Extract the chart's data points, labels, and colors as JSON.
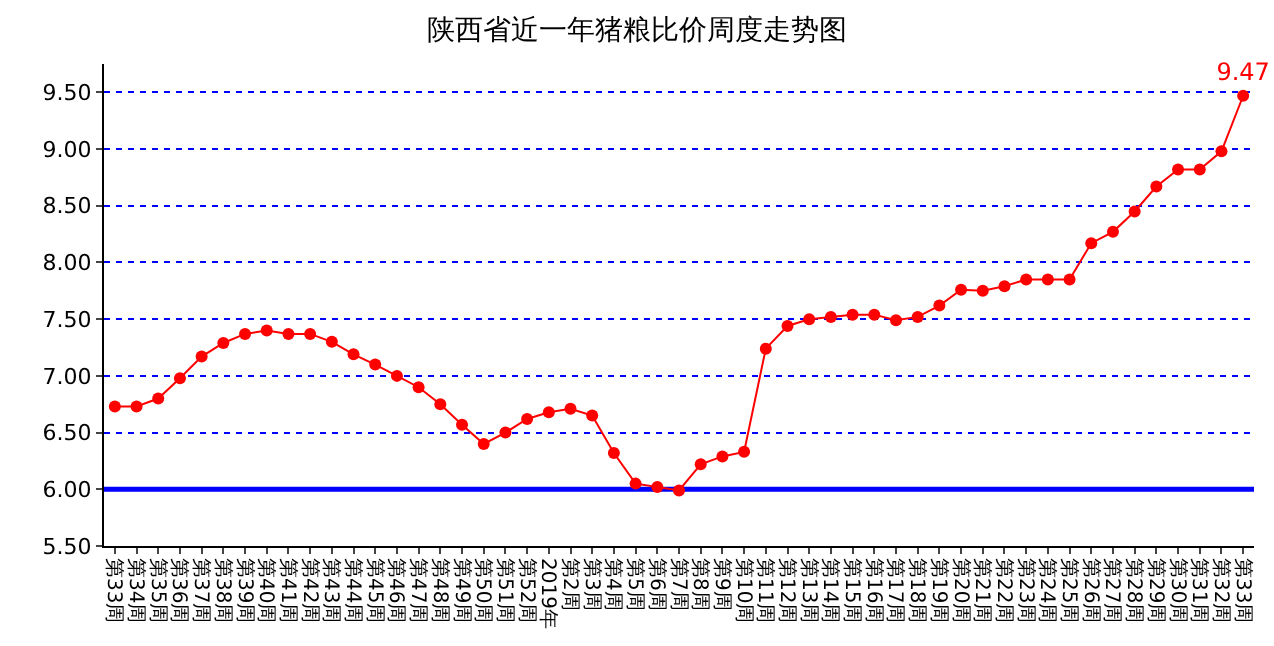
{
  "chart_data": {
    "type": "line",
    "title": "陕西省近一年猪粮比价周度走势图",
    "categories": [
      "第33周",
      "第34周",
      "第35周",
      "第36周",
      "第37周",
      "第38周",
      "第39周",
      "第40周",
      "第41周",
      "第42周",
      "第43周",
      "第44周",
      "第45周",
      "第46周",
      "第47周",
      "第48周",
      "第49周",
      "第50周",
      "第51周",
      "第52周",
      "2019年",
      "第2周",
      "第3周",
      "第4周",
      "第5周",
      "第6周",
      "第7周",
      "第8周",
      "第9周",
      "第10周",
      "第11周",
      "第12周",
      "第13周",
      "第14周",
      "第15周",
      "第16周",
      "第17周",
      "第18周",
      "第19周",
      "第20周",
      "第21周",
      "第22周",
      "第23周",
      "第24周",
      "第25周",
      "第26周",
      "第27周",
      "第28周",
      "第29周",
      "第30周",
      "第31周",
      "第32周",
      "第33周"
    ],
    "series": [
      {
        "color": "#ff0000",
        "values": [
          6.73,
          6.73,
          6.8,
          6.98,
          7.17,
          7.29,
          7.37,
          7.4,
          7.37,
          7.37,
          7.3,
          7.19,
          7.1,
          7.0,
          6.9,
          6.75,
          6.57,
          6.4,
          6.5,
          6.62,
          6.68,
          6.71,
          6.65,
          6.32,
          6.05,
          6.02,
          5.99,
          6.22,
          6.29,
          6.33,
          7.24,
          7.44,
          7.5,
          7.52,
          7.54,
          7.54,
          7.49,
          7.52,
          7.62,
          7.76,
          7.75,
          7.79,
          7.85,
          7.85,
          7.85,
          8.17,
          8.27,
          8.45,
          8.67,
          8.82,
          8.82,
          8.98,
          9.47
        ],
        "value_labels": [
          null,
          null,
          null,
          null,
          null,
          null,
          null,
          null,
          null,
          null,
          null,
          null,
          null,
          null,
          null,
          null,
          null,
          null,
          null,
          null,
          null,
          null,
          null,
          null,
          null,
          null,
          null,
          null,
          null,
          null,
          null,
          null,
          null,
          null,
          null,
          null,
          null,
          null,
          null,
          null,
          null,
          null,
          null,
          null,
          null,
          null,
          null,
          null,
          null,
          null,
          null,
          null,
          "9.47"
        ]
      }
    ],
    "ylim": [
      5.5,
      9.75
    ],
    "yticks": [
      {
        "value": 5.5,
        "label": "5.50"
      },
      {
        "value": 6,
        "label": "6.00"
      },
      {
        "value": 6.5,
        "label": "6.50"
      },
      {
        "value": 7,
        "label": "7.00"
      },
      {
        "value": 7.5,
        "label": "7.50"
      },
      {
        "value": 8,
        "label": "8.00"
      },
      {
        "value": 8.5,
        "label": "8.50"
      },
      {
        "value": 9,
        "label": "9.00"
      },
      {
        "value": 9.5,
        "label": "9.50"
      }
    ],
    "ref_lines": [
      {
        "axis": "y",
        "value": 6,
        "color": "#0000ff",
        "line_style": "solid"
      }
    ],
    "grid": "y",
    "legend": false,
    "marker": "circle",
    "line_style": "solid"
  }
}
